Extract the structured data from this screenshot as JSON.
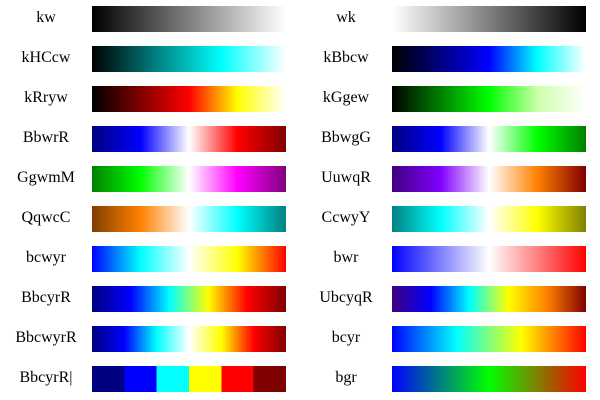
{
  "colormaps": {
    "left": [
      {
        "name": "kw",
        "kind": "gradient",
        "colors": [
          "#000000",
          "#ffffff"
        ]
      },
      {
        "name": "kHCcw",
        "kind": "gradient",
        "colors": [
          "#000000",
          "#008080",
          "#00ffff",
          "#ffffff"
        ]
      },
      {
        "name": "kRryw",
        "kind": "gradient",
        "colors": [
          "#000000",
          "#800000",
          "#ff0000",
          "#ffff00",
          "#ffffff"
        ]
      },
      {
        "name": "BbwrR",
        "kind": "gradient",
        "colors": [
          "#000080",
          "#0000ff",
          "#ffffff",
          "#ff0000",
          "#800000"
        ]
      },
      {
        "name": "GgwmM",
        "kind": "gradient",
        "colors": [
          "#008000",
          "#00ff00",
          "#ffffff",
          "#ff00ff",
          "#800080"
        ]
      },
      {
        "name": "QqwcC",
        "kind": "gradient",
        "colors": [
          "#804000",
          "#ff8000",
          "#ffffff",
          "#00ffff",
          "#008080"
        ]
      },
      {
        "name": "bcwyr",
        "kind": "gradient",
        "colors": [
          "#0000ff",
          "#00ffff",
          "#ffffff",
          "#ffff00",
          "#ff0000"
        ]
      },
      {
        "name": "BbcyrR",
        "kind": "gradient",
        "colors": [
          "#000080",
          "#0000ff",
          "#00ffff",
          "#ffff00",
          "#ff0000",
          "#800000"
        ]
      },
      {
        "name": "BbcwyrR",
        "kind": "gradient",
        "colors": [
          "#000080",
          "#0000ff",
          "#00ffff",
          "#ffffff",
          "#ffff00",
          "#ff0000",
          "#800000"
        ]
      },
      {
        "name": "BbcyrR|",
        "kind": "discrete",
        "colors": [
          "#000080",
          "#0000ff",
          "#00ffff",
          "#ffff00",
          "#ff0000",
          "#800000"
        ]
      }
    ],
    "right": [
      {
        "name": "wk",
        "kind": "gradient",
        "colors": [
          "#ffffff",
          "#000000"
        ]
      },
      {
        "name": "kBbcw",
        "kind": "gradient",
        "colors": [
          "#000000",
          "#000080",
          "#0000ff",
          "#00ffff",
          "#ffffff"
        ]
      },
      {
        "name": "kGgew",
        "kind": "gradient",
        "colors": [
          "#000000",
          "#008000",
          "#00ff00",
          "#ccffaa",
          "#ffffff"
        ]
      },
      {
        "name": "BbwgG",
        "kind": "gradient",
        "colors": [
          "#000080",
          "#0000ff",
          "#ffffff",
          "#00ff00",
          "#008000"
        ]
      },
      {
        "name": "UuwqR",
        "kind": "gradient",
        "colors": [
          "#400080",
          "#8000ff",
          "#ffffff",
          "#ff8000",
          "#800000"
        ]
      },
      {
        "name": "CcwyY",
        "kind": "gradient",
        "colors": [
          "#008080",
          "#00ffff",
          "#ffffff",
          "#ffff00",
          "#808000"
        ]
      },
      {
        "name": "bwr",
        "kind": "gradient",
        "colors": [
          "#0000ff",
          "#ffffff",
          "#ff0000"
        ]
      },
      {
        "name": "UbcyqR",
        "kind": "gradient",
        "colors": [
          "#400080",
          "#0000ff",
          "#00ffff",
          "#ffff00",
          "#ff8000",
          "#800000"
        ]
      },
      {
        "name": "bcyr",
        "kind": "gradient",
        "colors": [
          "#0000ff",
          "#00ffff",
          "#ffff00",
          "#ff0000"
        ]
      },
      {
        "name": "bgr",
        "kind": "gradient",
        "colors": [
          "#0000ff",
          "#00ff00",
          "#ff0000"
        ]
      }
    ]
  }
}
